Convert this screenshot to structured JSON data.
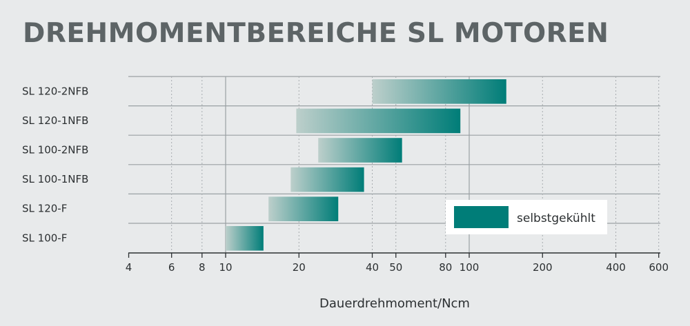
{
  "title": "DREHMOMENTBEREICHE SL MOTOREN",
  "colors": {
    "bar_start": "#bdcfcb",
    "bar_end": "#007d78",
    "legend_swatch": "#007d78",
    "text": "#2b2f31",
    "title": "#5d6466"
  },
  "chart_data": {
    "type": "bar",
    "orientation": "horizontal",
    "x_scale": "log",
    "xlim": [
      4,
      600
    ],
    "grid": true,
    "title": "DREHMOMENTBEREICHE SL MOTOREN",
    "xlabel": "Dauerdrehmoment/Ncm",
    "ylabel": "",
    "x_ticks": [
      4,
      6,
      8,
      10,
      20,
      40,
      50,
      80,
      100,
      200,
      400,
      600
    ],
    "x_tick_labels": [
      "4",
      "6",
      "8",
      "10",
      "20",
      "40",
      "50",
      "80",
      "100",
      "200",
      "400",
      "600"
    ],
    "categories": [
      "SL 120-2NFB",
      "SL 120-1NFB",
      "SL 100-2NFB",
      "SL 100-1NFB",
      "SL 120-F",
      "SL 100-F"
    ],
    "ranges": [
      {
        "category": "SL 120-2NFB",
        "start": 40,
        "end": 142
      },
      {
        "category": "SL 120-1NFB",
        "start": 19.5,
        "end": 92
      },
      {
        "category": "SL 100-2NFB",
        "start": 24,
        "end": 53
      },
      {
        "category": "SL 100-1NFB",
        "start": 18.5,
        "end": 37
      },
      {
        "category": "SL 120-F",
        "start": 15,
        "end": 29
      },
      {
        "category": "SL 100-F",
        "start": 10,
        "end": 14.3
      }
    ],
    "legend": {
      "position": "bottom-right",
      "entries": [
        "selbstgekühlt"
      ]
    }
  }
}
